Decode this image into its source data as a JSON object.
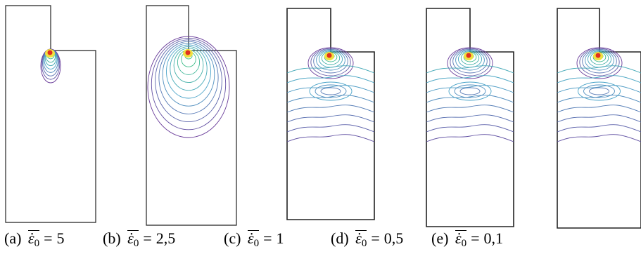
{
  "panels": [
    {
      "label": "(a)",
      "value": "5"
    },
    {
      "label": "(b)",
      "value": "2,5"
    },
    {
      "label": "(c)",
      "value": "1"
    },
    {
      "label": "(d)",
      "value": "0,5"
    },
    {
      "label": "(e)",
      "value": "0,1"
    }
  ],
  "symbol": {
    "base": "ε",
    "subscript": "0",
    "equals": "="
  },
  "colors": {
    "outline": "#222222",
    "contour_outer": "#6a3d9a",
    "contour_mid": "#4aa3c8",
    "contour_inner": "#3cc47a",
    "hotspot_yellow": "#f0e040",
    "hotspot_red": "#e03020"
  }
}
